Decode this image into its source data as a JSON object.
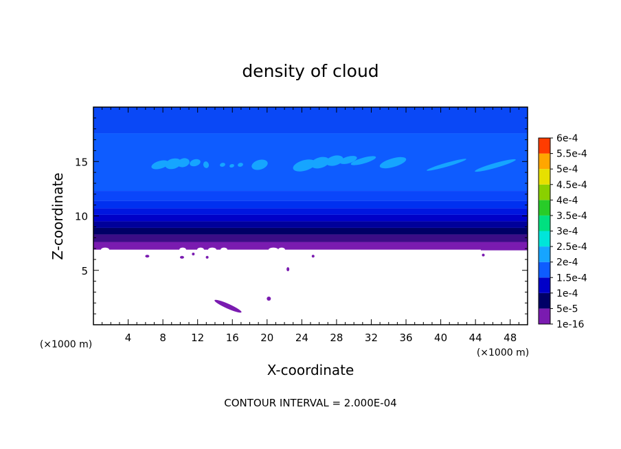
{
  "chart_data": {
    "type": "heatmap",
    "title": "density of cloud",
    "xlabel": "X-coordinate",
    "ylabel": "Z-coordinate",
    "x_unit": "(×1000 m)",
    "xlim": [
      0,
      50
    ],
    "ylim": [
      0,
      20
    ],
    "x_ticks": [
      4,
      8,
      12,
      16,
      20,
      24,
      28,
      32,
      36,
      40,
      44,
      48
    ],
    "y_ticks": [
      5,
      10,
      15
    ],
    "footer": "CONTOUR INTERVAL = 2.000E-04",
    "colorbar": {
      "levels": [
        "1e-16",
        "5e-5",
        "1e-4",
        "1.5e-4",
        "2e-4",
        "2.5e-4",
        "3e-4",
        "3.5e-4",
        "4e-4",
        "4.5e-4",
        "5e-4",
        "5.5e-4",
        "6e-4"
      ],
      "colors": [
        "#7a1bb0",
        "#000066",
        "#0000c8",
        "#0e5cff",
        "#16a5ff",
        "#00e5d9",
        "#00e080",
        "#28cc28",
        "#8ad000",
        "#e6e000",
        "#ffa600",
        "#ff3c00",
        "#ff8a8a"
      ]
    },
    "vertical_profile": [
      {
        "z_from": 6.9,
        "z_to": 7.6,
        "color": "#7a1bb0"
      },
      {
        "z_from": 7.6,
        "z_to": 8.3,
        "color": "#3b0d86"
      },
      {
        "z_from": 8.3,
        "z_to": 8.9,
        "color": "#000066"
      },
      {
        "z_from": 8.9,
        "z_to": 9.5,
        "color": "#00009a"
      },
      {
        "z_from": 9.5,
        "z_to": 10.1,
        "color": "#0000c8"
      },
      {
        "z_from": 10.1,
        "z_to": 10.7,
        "color": "#0016e0"
      },
      {
        "z_from": 10.7,
        "z_to": 11.4,
        "color": "#0030f0"
      },
      {
        "z_from": 11.4,
        "z_to": 12.3,
        "color": "#0a46fa"
      },
      {
        "z_from": 12.3,
        "z_to": 17.6,
        "color": "#0e5cff"
      },
      {
        "z_from": 17.6,
        "z_to": 20.0,
        "color": "#0a48f6"
      }
    ],
    "features": [
      {
        "name": "lower-patch",
        "color": "#7a1bb0",
        "x": [
          13.8,
          17.2
        ],
        "z": [
          1.2,
          2.2
        ]
      },
      {
        "name": "upper-patches",
        "color": "#16a5ff",
        "x": [
          6.5,
          48.0
        ],
        "z": [
          14.2,
          15.8
        ]
      }
    ]
  }
}
